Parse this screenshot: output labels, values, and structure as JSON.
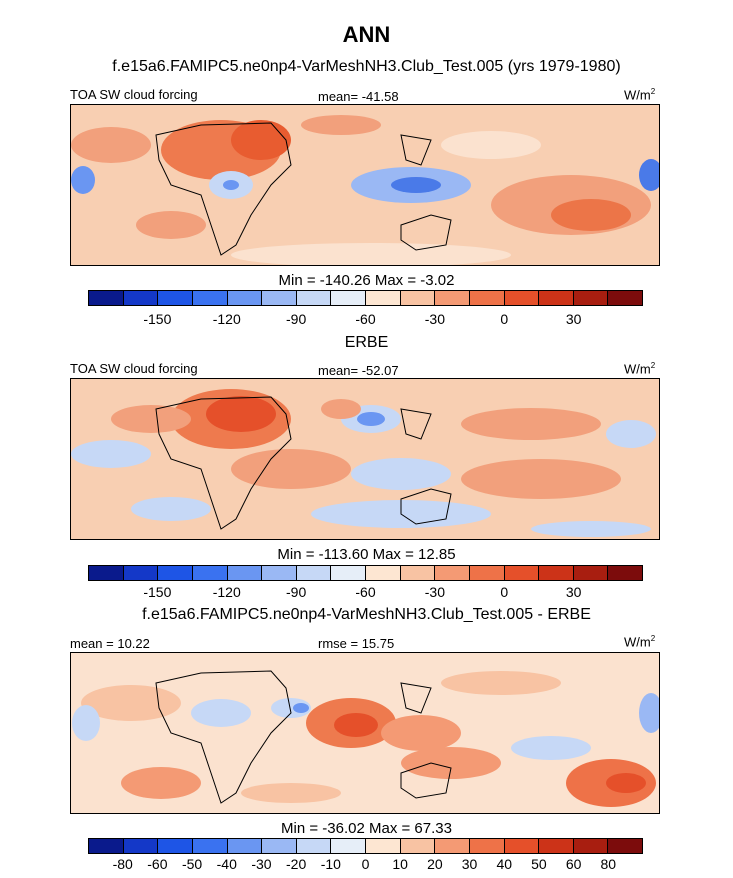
{
  "header": {
    "title": "ANN",
    "subtitle": "f.e15a6.FAMIPC5.ne0np4-VarMeshNH3.Club_Test.005 (yrs 1979-1980)"
  },
  "panel1": {
    "left_label": "TOA SW cloud forcing",
    "center_label": "mean= -41.58",
    "units": "W/m",
    "units_exp": "2",
    "minmax": "Min = -140.26 Max =  -3.02",
    "colorbar_ticks": [
      "-150",
      "-120",
      "-90",
      "-60",
      "-30",
      "0",
      "30"
    ]
  },
  "panel2": {
    "heading": "ERBE",
    "left_label": "TOA SW cloud forcing",
    "center_label": "mean= -52.07",
    "units": "W/m",
    "units_exp": "2",
    "minmax": "Min = -113.60 Max =  12.85",
    "colorbar_ticks": [
      "-150",
      "-120",
      "-90",
      "-60",
      "-30",
      "0",
      "30"
    ]
  },
  "panel3": {
    "heading": "f.e15a6.FAMIPC5.ne0np4-VarMeshNH3.Club_Test.005 - ERBE",
    "left_label": "mean =  10.22",
    "center_label": "rmse =  15.75",
    "units": "W/m",
    "units_exp": "2",
    "minmax": "Min = -36.02 Max =  67.33",
    "colorbar_ticks": [
      "-80",
      "-60",
      "-50",
      "-40",
      "-30",
      "-20",
      "-10",
      "0",
      "10",
      "20",
      "30",
      "40",
      "50",
      "60",
      "80"
    ]
  },
  "colors": {
    "colorbar": [
      "#0a1a8c",
      "#1438c8",
      "#1e55e6",
      "#3a72f0",
      "#6a96f2",
      "#9ab8f4",
      "#c6d8f6",
      "#e6eef8",
      "#fde6d2",
      "#f8c3a3",
      "#f49a74",
      "#ee7248",
      "#e5502a",
      "#cc3318",
      "#a81e10",
      "#7c0c0c"
    ],
    "ocean_base": "#f6c7a8",
    "light": "#fbe2cf",
    "mid": "#f2a07c",
    "strong": "#ec7548",
    "blue_light": "#c6d8f6",
    "blue_mid": "#8eaef0",
    "blue_strong": "#4a7ae8"
  }
}
